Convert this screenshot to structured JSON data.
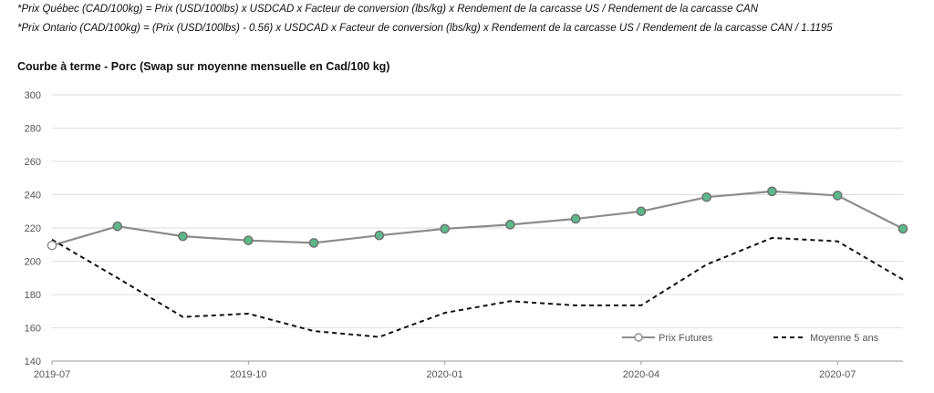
{
  "notes": {
    "formula_quebec": "*Prix Québec (CAD/100kg) = Prix (USD/100lbs) x USDCAD x Facteur de conversion (lbs/kg) x Rendement de la carcasse US / Rendement de la carcasse CAN",
    "formula_ontario": "*Prix Ontario (CAD/100kg) = (Prix (USD/100lbs) - 0.56) x USDCAD x Facteur de conversion (lbs/kg) x Rendement de la carcasse US / Rendement de la carcasse CAN / 1.1195"
  },
  "chart_data": {
    "type": "line",
    "title": "Courbe à terme - Porc (Swap sur moyenne mensuelle en Cad/100 kg)",
    "xlabel": "",
    "ylabel": "",
    "x": [
      "2019-07",
      "2019-08",
      "2019-09",
      "2019-10",
      "2019-11",
      "2019-12",
      "2020-01",
      "2020-02",
      "2020-03",
      "2020-04",
      "2020-05",
      "2020-06",
      "2020-07",
      "2020-08"
    ],
    "x_tick_labels": [
      "2019-07",
      "2019-10",
      "2020-01",
      "2020-04",
      "2020-07"
    ],
    "ylim": [
      140,
      300
    ],
    "y_ticks": [
      140,
      160,
      180,
      200,
      220,
      240,
      260,
      280,
      300
    ],
    "grid": true,
    "legend_position": "bottom-right",
    "series": [
      {
        "name": "Prix Futures",
        "style": "solid-markers",
        "color": "#8c8c8c",
        "marker_color": "#5cb88a",
        "values": [
          209.5,
          221,
          215,
          212.5,
          211,
          215.5,
          219.5,
          222,
          225.5,
          230,
          238.5,
          242,
          239.5,
          219.5
        ]
      },
      {
        "name": "Moyenne 5 ans",
        "style": "dashed",
        "color": "#111111",
        "values": [
          213,
          190,
          166.5,
          168.5,
          158,
          154.5,
          169,
          176,
          173.5,
          173.5,
          198,
          214,
          212,
          189
        ]
      }
    ]
  }
}
